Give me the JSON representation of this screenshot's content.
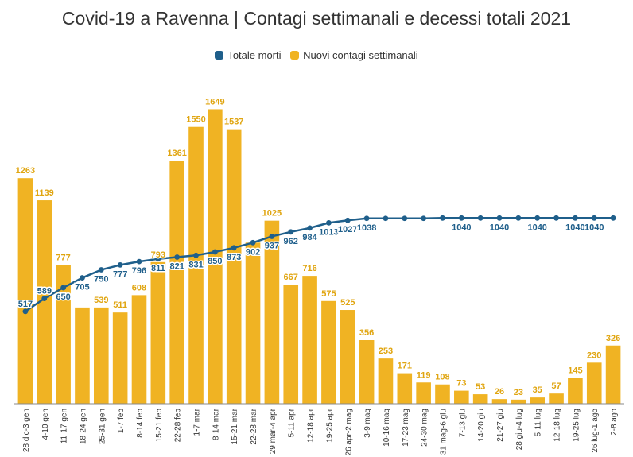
{
  "title": "Covid-19 a Ravenna | Contagi settimanali e decessi totali 2021",
  "legend": {
    "line_label": "Totale morti",
    "bar_label": "Nuovi contagi settimanali"
  },
  "colors": {
    "bars": "#f0b323",
    "line": "#1f5f8b",
    "text": "#333333"
  },
  "chart_data": {
    "type": "bar",
    "categories": [
      "28 dic-3 gen",
      "4-10 gen",
      "11-17 gen",
      "18-24 gen",
      "25-31 gen",
      "1-7 feb",
      "8-14 feb",
      "15-21 feb",
      "22-28 feb",
      "1-7 mar",
      "8-14 mar",
      "15-21 mar",
      "22-28 mar",
      "29 mar-4 apr",
      "5-11 apr",
      "12-18 apr",
      "19-25 apr",
      "26 apr-2 mag",
      "3-9 mag",
      "10-16 mag",
      "17-23 mag",
      "24-30 mag",
      "31 mag-6 giu",
      "7-13 giu",
      "14-20 giu",
      "21-27 giu",
      "28 giu-4 lug",
      "5-11 lug",
      "12-18 lug",
      "19-25 lug",
      "26 lug-1 ago",
      "2-8 ago"
    ],
    "series": [
      {
        "name": "Nuovi contagi settimanali",
        "type": "bar",
        "values": [
          1263,
          1139,
          777,
          539,
          539,
          511,
          608,
          793,
          1361,
          1550,
          1649,
          1537,
          902,
          1025,
          667,
          716,
          575,
          525,
          356,
          253,
          171,
          119,
          108,
          73,
          53,
          26,
          23,
          35,
          57,
          145,
          230,
          326
        ]
      },
      {
        "name": "Totale morti",
        "type": "line",
        "values": [
          517,
          589,
          650,
          705,
          750,
          777,
          796,
          811,
          821,
          831,
          850,
          873,
          902,
          937,
          962,
          984,
          1013,
          1027,
          1038,
          1038,
          1038,
          1038,
          1040,
          1040,
          1040,
          1040,
          1040,
          1040,
          1040,
          1040,
          1040,
          1040
        ]
      }
    ],
    "bar_labels": [
      "1263",
      "1139",
      "777",
      "",
      "539",
      "511",
      "608",
      "793",
      "1361",
      "1550",
      "1649",
      "1537",
      "",
      "1025",
      "667",
      "716",
      "575",
      "525",
      "356",
      "253",
      "171",
      "119",
      "108",
      "73",
      "53",
      "26",
      "23",
      "35",
      "57",
      "145",
      "230",
      "326"
    ],
    "line_labels": [
      "517",
      "589",
      "650",
      "705",
      "750",
      "777",
      "796",
      "811",
      "821",
      "831",
      "850",
      "873",
      "902",
      "937",
      "962",
      "984",
      "1013",
      "1027",
      "1038",
      "",
      "",
      "",
      "",
      "1040",
      "",
      "1040",
      "",
      "1040",
      "",
      "1040",
      "1040",
      ""
    ],
    "ylim": [
      0,
      1700
    ],
    "grid": false,
    "legend_position": "top"
  }
}
